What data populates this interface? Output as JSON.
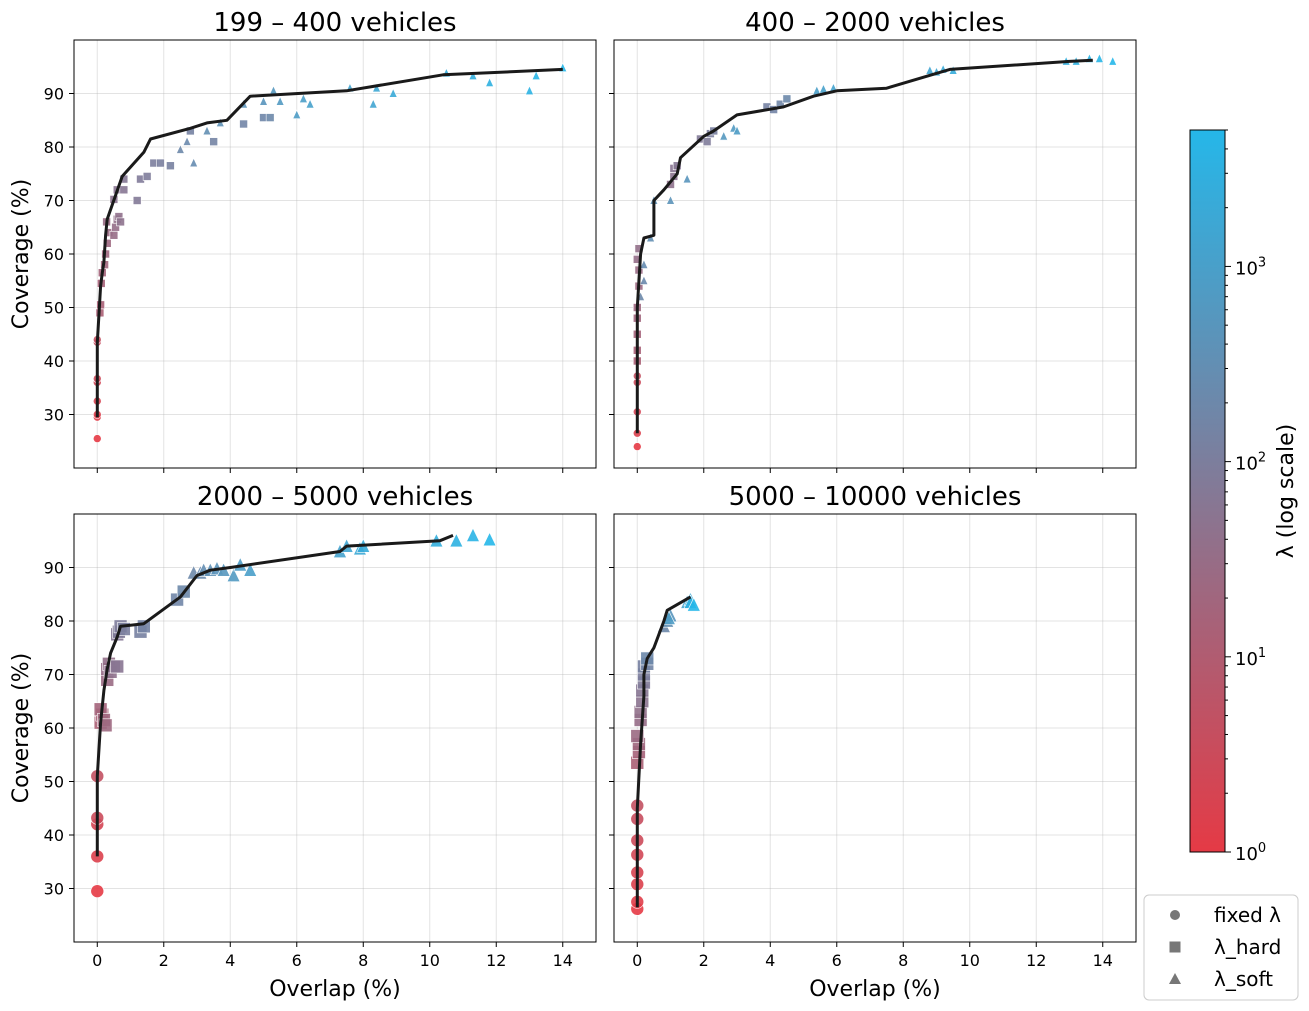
{
  "figure": {
    "xlabel": "Overlap (%)",
    "ylabel": "Coverage (%)",
    "x_ticks": [
      0,
      2,
      4,
      6,
      8,
      10,
      12,
      14
    ],
    "y_ticks": [
      30,
      40,
      50,
      60,
      70,
      80,
      90
    ],
    "xlim": [
      -0.7,
      15.0
    ],
    "ylim": [
      20,
      100
    ],
    "colorbar": {
      "label": "λ (log scale)",
      "scale": "log",
      "range": [
        1,
        5000
      ],
      "tick_base": "10",
      "tick_exponents": [
        "0",
        "1",
        "2",
        "3"
      ],
      "color_low": "#e53a45",
      "color_mid": "#847996",
      "color_high": "#25b7e9"
    },
    "legend": {
      "placement": "bottom-right",
      "entries": [
        {
          "label": "fixed λ",
          "marker": "circle"
        },
        {
          "label": "λ_hard",
          "marker": "square"
        },
        {
          "label": "λ_soft",
          "marker": "triangle"
        }
      ]
    }
  },
  "chart_data": [
    {
      "type": "scatter",
      "title": "199 – 400 vehicles",
      "pareto_front": [
        [
          0,
          29.5
        ],
        [
          0,
          43.5
        ],
        [
          0.05,
          48.5
        ],
        [
          0.1,
          54
        ],
        [
          0.15,
          56.5
        ],
        [
          0.2,
          58.5
        ],
        [
          0.25,
          63.5
        ],
        [
          0.3,
          66.5
        ],
        [
          0.55,
          71
        ],
        [
          0.75,
          74.5
        ],
        [
          1.4,
          79
        ],
        [
          1.6,
          81.5
        ],
        [
          2.8,
          83.5
        ],
        [
          3.3,
          84.5
        ],
        [
          3.9,
          85
        ],
        [
          4.6,
          89.5
        ],
        [
          7.5,
          90.5
        ],
        [
          10.4,
          93.5
        ],
        [
          14,
          94.5
        ]
      ],
      "fixed": [
        [
          0,
          25.5
        ],
        [
          0,
          29.5
        ],
        [
          0,
          30
        ],
        [
          0,
          32.5
        ],
        [
          0,
          36
        ],
        [
          0,
          36.7
        ],
        [
          0,
          43.5
        ],
        [
          0,
          44
        ]
      ],
      "hard": [
        [
          0.08,
          49
        ],
        [
          0.1,
          50.5
        ],
        [
          0.12,
          54.5
        ],
        [
          0.15,
          56.5
        ],
        [
          0.22,
          58
        ],
        [
          0.25,
          60
        ],
        [
          0.3,
          62
        ],
        [
          0.35,
          64
        ],
        [
          0.28,
          66
        ],
        [
          0.5,
          63.5
        ],
        [
          0.55,
          65
        ],
        [
          0.6,
          66.5
        ],
        [
          0.65,
          67
        ],
        [
          0.7,
          66
        ],
        [
          0.5,
          70.2
        ],
        [
          0.6,
          72
        ],
        [
          0.8,
          72
        ],
        [
          0.8,
          74
        ],
        [
          1.2,
          70
        ],
        [
          1.3,
          74
        ],
        [
          1.5,
          74.5
        ],
        [
          1.7,
          77
        ],
        [
          1.9,
          77
        ],
        [
          2.2,
          76.5
        ],
        [
          2.8,
          83
        ],
        [
          3.5,
          81
        ],
        [
          4.4,
          84.3
        ],
        [
          5.0,
          85.5
        ],
        [
          5.2,
          85.5
        ]
      ],
      "soft": [
        [
          2.5,
          79.5
        ],
        [
          2.7,
          81
        ],
        [
          2.9,
          77
        ],
        [
          3.3,
          83
        ],
        [
          3.7,
          84.5
        ],
        [
          4.4,
          88
        ],
        [
          5.0,
          88.5
        ],
        [
          5.3,
          90.5
        ],
        [
          5.5,
          88.5
        ],
        [
          6.0,
          86
        ],
        [
          6.2,
          89
        ],
        [
          6.4,
          88
        ],
        [
          7.6,
          91
        ],
        [
          8.3,
          88
        ],
        [
          8.4,
          91
        ],
        [
          8.9,
          90
        ],
        [
          10.5,
          93.8
        ],
        [
          11.3,
          93.3
        ],
        [
          11.8,
          92
        ],
        [
          13.0,
          90.5
        ],
        [
          13.2,
          93.3
        ],
        [
          14.0,
          94.8
        ]
      ]
    },
    {
      "type": "scatter",
      "title": "400 – 2000 vehicles",
      "pareto_front": [
        [
          0,
          26.5
        ],
        [
          0,
          37
        ],
        [
          0,
          45
        ],
        [
          0,
          50
        ],
        [
          0.1,
          60
        ],
        [
          0.2,
          63
        ],
        [
          0.5,
          63.5
        ],
        [
          0.5,
          70
        ],
        [
          0.8,
          72
        ],
        [
          1.2,
          75
        ],
        [
          1.3,
          78
        ],
        [
          2,
          82
        ],
        [
          2.3,
          83
        ],
        [
          3,
          86
        ],
        [
          4.4,
          87.5
        ],
        [
          5.3,
          89.5
        ],
        [
          6,
          90.5
        ],
        [
          7.5,
          91
        ],
        [
          9.4,
          94.5
        ],
        [
          13,
          96
        ],
        [
          13.7,
          96.2
        ]
      ],
      "fixed": [
        [
          0,
          24
        ],
        [
          0,
          26.5
        ],
        [
          0,
          30.5
        ],
        [
          0,
          36
        ],
        [
          0,
          37.2
        ]
      ],
      "hard": [
        [
          0,
          40
        ],
        [
          0,
          42
        ],
        [
          0,
          45
        ],
        [
          0,
          48
        ],
        [
          0,
          50
        ],
        [
          0.05,
          54
        ],
        [
          0.05,
          57
        ],
        [
          0,
          59
        ],
        [
          0.05,
          61
        ],
        [
          1.0,
          73
        ],
        [
          1.1,
          74.5
        ],
        [
          1.1,
          76
        ],
        [
          1.2,
          76.5
        ],
        [
          1.9,
          81.5
        ],
        [
          2.1,
          81
        ],
        [
          2.2,
          82.5
        ],
        [
          2.3,
          83
        ],
        [
          3.9,
          87.5
        ],
        [
          4.1,
          87
        ],
        [
          4.3,
          88
        ],
        [
          4.5,
          89
        ]
      ],
      "soft": [
        [
          0.1,
          52
        ],
        [
          0.2,
          55
        ],
        [
          0.2,
          58
        ],
        [
          0.4,
          63
        ],
        [
          0.5,
          70
        ],
        [
          1.0,
          70
        ],
        [
          1.5,
          74
        ],
        [
          2.6,
          82
        ],
        [
          2.9,
          83.5
        ],
        [
          3.0,
          83
        ],
        [
          5.4,
          90.5
        ],
        [
          5.6,
          90.8
        ],
        [
          5.9,
          91
        ],
        [
          8.8,
          94.3
        ],
        [
          9.0,
          94
        ],
        [
          9.2,
          94.5
        ],
        [
          9.5,
          94.3
        ],
        [
          12.9,
          96
        ],
        [
          13.2,
          96
        ],
        [
          13.6,
          96.5
        ],
        [
          13.9,
          96.5
        ],
        [
          14.3,
          96
        ]
      ]
    },
    {
      "type": "scatter",
      "title": "2000 – 5000 vehicles",
      "pareto_front": [
        [
          0,
          36
        ],
        [
          0,
          51
        ],
        [
          0.1,
          61
        ],
        [
          0.2,
          67
        ],
        [
          0.3,
          71
        ],
        [
          0.4,
          74
        ],
        [
          0.6,
          77
        ],
        [
          0.7,
          79
        ],
        [
          1.4,
          79.5
        ],
        [
          2.5,
          84.5
        ],
        [
          3.0,
          88.5
        ],
        [
          3.4,
          89.5
        ],
        [
          4.0,
          90
        ],
        [
          7.3,
          93
        ],
        [
          7.5,
          94
        ],
        [
          10.3,
          95
        ],
        [
          10.7,
          96
        ]
      ],
      "fixed": [
        [
          0,
          29.5
        ],
        [
          0,
          36
        ],
        [
          0,
          42
        ],
        [
          0,
          43.2
        ],
        [
          0,
          51
        ]
      ],
      "hard": [
        [
          0.1,
          61
        ],
        [
          0.15,
          62.5
        ],
        [
          0.1,
          63.5
        ],
        [
          0.2,
          61.5
        ],
        [
          0.25,
          60.5
        ],
        [
          0.3,
          69
        ],
        [
          0.3,
          71
        ],
        [
          0.35,
          72
        ],
        [
          0.4,
          70.5
        ],
        [
          0.5,
          71.5
        ],
        [
          0.6,
          71.5
        ],
        [
          0.6,
          77.5
        ],
        [
          0.65,
          78
        ],
        [
          0.7,
          79
        ],
        [
          0.8,
          78.5
        ],
        [
          1.3,
          78
        ],
        [
          1.4,
          79
        ],
        [
          2.4,
          84
        ],
        [
          2.6,
          85.5
        ]
      ],
      "soft": [
        [
          2.9,
          89
        ],
        [
          3.1,
          89
        ],
        [
          3.2,
          89.5
        ],
        [
          3.4,
          89.5
        ],
        [
          3.6,
          89.8
        ],
        [
          3.8,
          89.5
        ],
        [
          4.1,
          88.5
        ],
        [
          4.3,
          90.5
        ],
        [
          4.6,
          89.5
        ],
        [
          7.3,
          93
        ],
        [
          7.5,
          94
        ],
        [
          7.9,
          93.5
        ],
        [
          8.0,
          94
        ],
        [
          10.2,
          95
        ],
        [
          10.8,
          95
        ],
        [
          11.3,
          96
        ],
        [
          11.8,
          95.2
        ]
      ]
    },
    {
      "type": "scatter",
      "title": "5000 – 10000 vehicles",
      "pareto_front": [
        [
          0,
          26.5
        ],
        [
          0,
          36
        ],
        [
          0,
          42
        ],
        [
          0,
          45
        ],
        [
          0.1,
          57
        ],
        [
          0.2,
          66
        ],
        [
          0.2,
          70
        ],
        [
          0.3,
          73
        ],
        [
          0.5,
          75
        ],
        [
          0.8,
          80
        ],
        [
          0.9,
          82
        ],
        [
          1.6,
          84.5
        ]
      ],
      "fixed": [
        [
          0,
          26.2
        ],
        [
          0,
          27.5
        ],
        [
          0,
          30.8
        ],
        [
          0,
          33
        ],
        [
          0,
          36.3
        ],
        [
          0,
          39
        ],
        [
          0,
          43
        ],
        [
          0,
          45.5
        ]
      ],
      "hard": [
        [
          0,
          53.5
        ],
        [
          0.05,
          55.5
        ],
        [
          0.05,
          57
        ],
        [
          0,
          58.5
        ],
        [
          0.1,
          61.5
        ],
        [
          0.1,
          63
        ],
        [
          0.15,
          65
        ],
        [
          0.15,
          67
        ],
        [
          0.2,
          68.5
        ],
        [
          0.2,
          70
        ],
        [
          0.2,
          71.5
        ],
        [
          0.3,
          72
        ],
        [
          0.3,
          73
        ]
      ],
      "soft": [
        [
          0.8,
          79
        ],
        [
          0.9,
          80
        ],
        [
          1.0,
          81
        ],
        [
          0.95,
          80.5
        ],
        [
          1.5,
          83.5
        ],
        [
          1.6,
          84
        ],
        [
          1.6,
          83.5
        ],
        [
          1.7,
          83
        ]
      ]
    }
  ]
}
